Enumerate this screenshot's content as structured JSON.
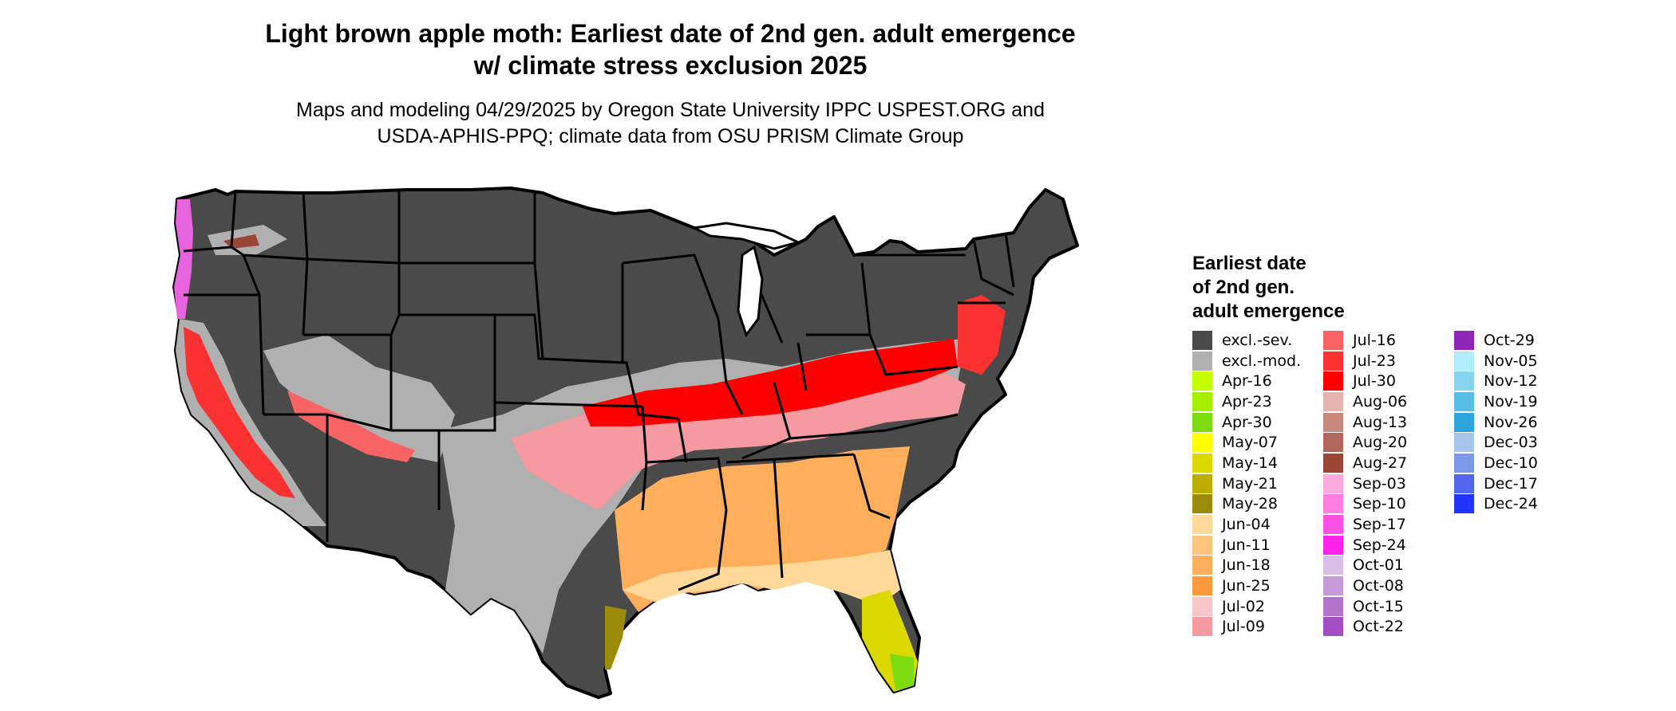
{
  "title_line1": "Light brown apple moth: Earliest date of 2nd gen. adult emergence",
  "title_line2": "w/ climate stress exclusion 2025",
  "subtitle_line1": "Maps and modeling 04/29/2025 by Oregon State University IPPC USPEST.ORG and",
  "subtitle_line2": "USDA-APHIS-PPQ; climate data from OSU PRISM Climate Group",
  "legend": {
    "title_line1": "Earliest date",
    "title_line2": "of 2nd gen.",
    "title_line3": "adult emergence",
    "columns": [
      [
        {
          "label": "excl.-sev.",
          "color": "#4a4a4a"
        },
        {
          "label": "excl.-mod.",
          "color": "#b0b0b0"
        },
        {
          "label": "Apr-16",
          "color": "#c6ff00"
        },
        {
          "label": "Apr-23",
          "color": "#a6ee00"
        },
        {
          "label": "Apr-30",
          "color": "#7ddc0f"
        },
        {
          "label": "May-07",
          "color": "#ffff00"
        },
        {
          "label": "May-14",
          "color": "#dcd800"
        },
        {
          "label": "May-21",
          "color": "#bcad00"
        },
        {
          "label": "May-28",
          "color": "#9c8a0a"
        },
        {
          "label": "Jun-04",
          "color": "#ffd89a"
        },
        {
          "label": "Jun-11",
          "color": "#ffc47e"
        },
        {
          "label": "Jun-18",
          "color": "#ffaf5c"
        },
        {
          "label": "Jun-25",
          "color": "#ff9a3c"
        },
        {
          "label": "Jul-02",
          "color": "#f7c6cb"
        },
        {
          "label": "Jul-09",
          "color": "#f49aa0"
        }
      ],
      [
        {
          "label": "Jul-16",
          "color": "#f86464"
        },
        {
          "label": "Jul-23",
          "color": "#fb3232"
        },
        {
          "label": "Jul-30",
          "color": "#ff0000"
        },
        {
          "label": "Aug-06",
          "color": "#e6b4ae"
        },
        {
          "label": "Aug-13",
          "color": "#c8887e"
        },
        {
          "label": "Aug-20",
          "color": "#b0665a"
        },
        {
          "label": "Aug-27",
          "color": "#9a4536"
        },
        {
          "label": "Sep-03",
          "color": "#ffa9de"
        },
        {
          "label": "Sep-10",
          "color": "#ff7ee0"
        },
        {
          "label": "Sep-17",
          "color": "#ff50e6"
        },
        {
          "label": "Sep-24",
          "color": "#ff23ec"
        },
        {
          "label": "Oct-01",
          "color": "#dcbce8"
        },
        {
          "label": "Oct-08",
          "color": "#c69ad8"
        },
        {
          "label": "Oct-15",
          "color": "#b274cc"
        },
        {
          "label": "Oct-22",
          "color": "#a24ec2"
        }
      ],
      [
        {
          "label": "Oct-29",
          "color": "#8e24b8"
        },
        {
          "label": "Nov-05",
          "color": "#b0ecfb"
        },
        {
          "label": "Nov-12",
          "color": "#88d4f0"
        },
        {
          "label": "Nov-19",
          "color": "#5abde6"
        },
        {
          "label": "Nov-26",
          "color": "#2ca4dc"
        },
        {
          "label": "Dec-03",
          "color": "#a6c4ec"
        },
        {
          "label": "Dec-10",
          "color": "#7c98ea"
        },
        {
          "label": "Dec-17",
          "color": "#5266ee"
        },
        {
          "label": "Dec-24",
          "color": "#2233f8"
        }
      ]
    ]
  }
}
